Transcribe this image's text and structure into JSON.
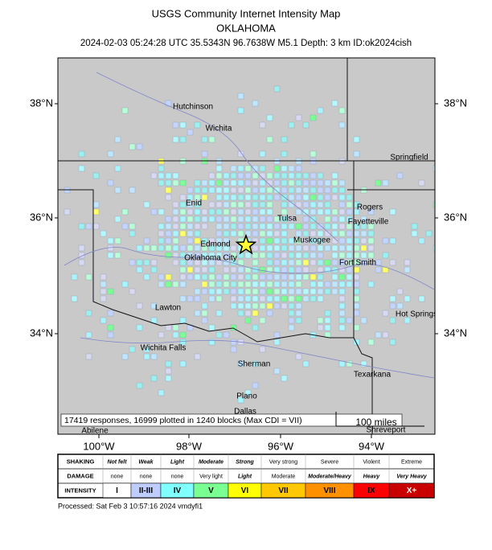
{
  "header": {
    "title": "USGS Community Internet Intensity Map",
    "region": "OKLAHOMA",
    "event": "2024-02-03 05:24:28 UTC 35.5343N 96.7638W M5.1 Depth: 3 km ID:ok2024cish"
  },
  "map": {
    "lat_labels": [
      "38°N",
      "36°N",
      "34°N"
    ],
    "lon_labels": [
      "100°W",
      "98°W",
      "96°W",
      "94°W"
    ],
    "cities": [
      "Hutchinson",
      "Wichita",
      "Springfield",
      "Enid",
      "Tulsa",
      "Rogers",
      "Fayetteville",
      "Edmond",
      "Muskogee",
      "Oklahoma City",
      "Fort Smith",
      "Lawton",
      "Hot Springs",
      "Wichita Falls",
      "Sherman",
      "Texarkana",
      "Plano",
      "Dallas",
      "Shreveport",
      "Abilene"
    ],
    "summary": "17419 responses, 16999 plotted in 1240 blocks (Max CDI = VII)",
    "scale": "100 miles"
  },
  "legend": {
    "row_labels": [
      "SHAKING",
      "DAMAGE",
      "INTENSITY"
    ],
    "shaking": [
      "Not felt",
      "Weak",
      "Light",
      "Moderate",
      "Strong",
      "Very strong",
      "Severe",
      "Violent",
      "Extreme"
    ],
    "damage": [
      "none",
      "none",
      "none",
      "Very light",
      "Light",
      "Moderate",
      "Moderate/Heavy",
      "Heavy",
      "Very Heavy"
    ],
    "intensity": [
      "I",
      "II-III",
      "IV",
      "V",
      "VI",
      "VII",
      "VIII",
      "IX",
      "X+"
    ],
    "colors": [
      "#ffffff",
      "#bfccff",
      "#80ffff",
      "#7aff93",
      "#ffff00",
      "#ffc800",
      "#ff9100",
      "#ff0000",
      "#c80000"
    ]
  },
  "footer": "Processed: Sat Feb  3 10:57:16 2024 vmdyfi1"
}
